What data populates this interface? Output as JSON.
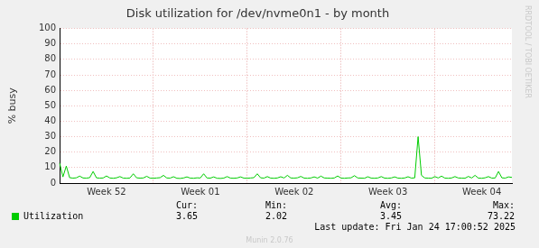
{
  "chart_data": {
    "type": "line",
    "title": "Disk utilization for /dev/nvme0n1 - by month",
    "y_label": "% busy",
    "categories": [
      null,
      null,
      null,
      null,
      null,
      null,
      null,
      null,
      null,
      null,
      null,
      null,
      null,
      null,
      "Week 52",
      null,
      null,
      null,
      null,
      null,
      null,
      null,
      null,
      null,
      null,
      null,
      null,
      null,
      null,
      null,
      null,
      null,
      null,
      null,
      null,
      null,
      null,
      null,
      null,
      null,
      null,
      null,
      "Week 01",
      null,
      null,
      null,
      null,
      null,
      null,
      null,
      null,
      null,
      null,
      null,
      null,
      null,
      null,
      null,
      null,
      null,
      null,
      null,
      null,
      null,
      null,
      null,
      null,
      null,
      null,
      null,
      "Week 02",
      null,
      null,
      null,
      null,
      null,
      null,
      null,
      null,
      null,
      null,
      null,
      null,
      null,
      null,
      null,
      null,
      null,
      null,
      null,
      null,
      null,
      null,
      null,
      null,
      null,
      null,
      null,
      "Week 03",
      null,
      null,
      null,
      null,
      null,
      null,
      null,
      null,
      null,
      null,
      null,
      null,
      null,
      null,
      null,
      null,
      null,
      null,
      null,
      null,
      null,
      null,
      null,
      null,
      null,
      null,
      null,
      "Week 04",
      null,
      null,
      null,
      null,
      null,
      null,
      null,
      null,
      null
    ],
    "series": [
      {
        "name": "Utilization",
        "color": "#00cc00",
        "values": [
          13,
          4,
          11,
          3.5,
          3.2,
          3.4,
          4.5,
          3.3,
          3.2,
          3.5,
          7.5,
          3.4,
          3.2,
          3.3,
          4.6,
          3.3,
          3.1,
          3.4,
          4.2,
          3.2,
          3.1,
          3.3,
          6,
          3.4,
          3.2,
          3.3,
          4.4,
          3.2,
          3.1,
          3.3,
          3.5,
          5,
          3.3,
          3.2,
          4.1,
          3.1,
          3,
          3.3,
          4,
          3.2,
          3.1,
          3.4,
          3.3,
          6,
          3.3,
          3.2,
          4,
          3.1,
          3,
          3.2,
          4.2,
          3.2,
          3.1,
          3.3,
          4,
          3.2,
          3.1,
          3.3,
          3.5,
          6,
          3.4,
          3.2,
          4.2,
          3.2,
          3.1,
          3.3,
          4.1,
          3.3,
          5,
          3.3,
          3.2,
          3.4,
          4.3,
          3.2,
          3.1,
          3.3,
          4,
          3.2,
          4.5,
          3.3,
          3.2,
          3.1,
          3.3,
          4.6,
          3.2,
          3.1,
          3.3,
          3.4,
          4.8,
          3.3,
          3.2,
          3.1,
          4.1,
          3.2,
          3.1,
          3.3,
          4.2,
          3.2,
          3.1,
          3.3,
          4,
          3.2,
          3.1,
          3.3,
          4.1,
          3.2,
          3.4,
          30,
          5,
          3.3,
          3.2,
          3.1,
          4.2,
          3.3,
          4.5,
          3.2,
          3.1,
          3.3,
          4.2,
          3.3,
          3.2,
          3.1,
          4.3,
          3.3,
          5,
          3.2,
          3.1,
          3.4,
          4.2,
          3.2,
          3.3,
          7.5,
          3.4,
          3.2,
          4,
          3.65
        ]
      }
    ],
    "ylim": [
      0,
      100
    ],
    "yticks": [
      0,
      10,
      20,
      30,
      40,
      50,
      60,
      70,
      80,
      90,
      100
    ],
    "grid": true,
    "legend": "bottom",
    "stats": {
      "labels": [
        "Cur:",
        "Min:",
        "Avg:",
        "Max:"
      ],
      "values": [
        3.65,
        2.02,
        3.45,
        73.22
      ]
    },
    "last_update": "Last update: Fri Jan 24 17:00:52 2025",
    "footer": "Munin 2.0.76",
    "side_text": "RRDTOOL / TOBI OETIKER"
  }
}
